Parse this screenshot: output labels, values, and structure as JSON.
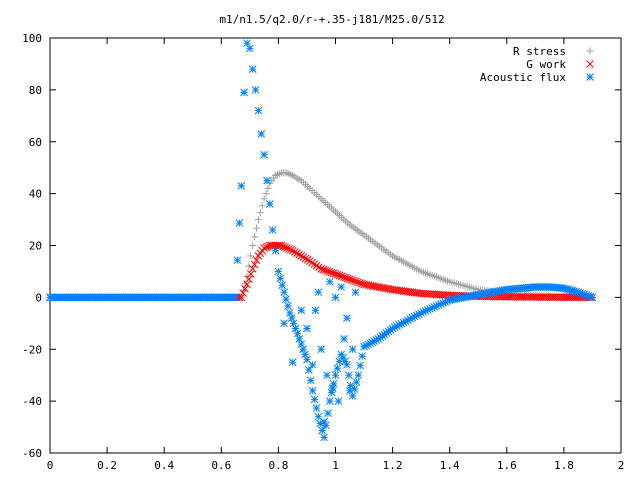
{
  "chart_data": {
    "type": "scatter",
    "title": "m1/n1.5/q2.0/r-+.35-j181/M25.0/512",
    "xlabel": "",
    "ylabel": "",
    "xlim": [
      0,
      2
    ],
    "ylim": [
      -60,
      100
    ],
    "x_ticks": [
      "0",
      "0.2",
      "0.4",
      "0.6",
      "0.8",
      "1",
      "1.2",
      "1.4",
      "1.6",
      "1.8",
      "2"
    ],
    "y_ticks": [
      "100",
      "80",
      "60",
      "40",
      "20",
      "0",
      "-20",
      "-40",
      "-60"
    ],
    "grid": false,
    "legend_position": "top-right",
    "series": [
      {
        "name": "R stress",
        "marker": "plus",
        "color": "#a0a0a0",
        "x": [
          0.0,
          0.1,
          0.2,
          0.3,
          0.4,
          0.5,
          0.6,
          0.67,
          0.69,
          0.71,
          0.73,
          0.75,
          0.77,
          0.79,
          0.81,
          0.83,
          0.85,
          0.88,
          0.91,
          0.95,
          1.0,
          1.05,
          1.1,
          1.2,
          1.3,
          1.4,
          1.5,
          1.6,
          1.7,
          1.8,
          1.9
        ],
        "y": [
          0,
          0,
          0,
          0,
          0,
          0,
          0,
          0,
          8,
          20,
          30,
          38,
          44,
          47,
          48,
          48,
          47,
          45,
          42,
          38,
          33,
          28,
          24,
          16,
          10,
          6,
          3,
          1.5,
          0.8,
          0.3,
          0
        ]
      },
      {
        "name": "G work",
        "marker": "x",
        "color": "#ff0000",
        "x": [
          0.0,
          0.1,
          0.2,
          0.3,
          0.4,
          0.5,
          0.6,
          0.67,
          0.69,
          0.71,
          0.73,
          0.75,
          0.77,
          0.79,
          0.81,
          0.83,
          0.85,
          0.88,
          0.91,
          0.95,
          1.0,
          1.05,
          1.1,
          1.2,
          1.3,
          1.4,
          1.5,
          1.6,
          1.7,
          1.8,
          1.9
        ],
        "y": [
          0,
          0,
          0,
          0,
          0,
          0,
          0,
          0,
          5,
          11,
          16,
          19,
          20,
          20,
          20,
          19,
          18,
          16,
          14,
          11,
          9,
          7,
          5,
          3,
          1.5,
          0.8,
          0.4,
          0.2,
          0.1,
          0,
          0
        ]
      },
      {
        "name": "Acoustic flux",
        "marker": "star",
        "color": "#0080ff",
        "x": [
          0.0,
          0.1,
          0.2,
          0.3,
          0.4,
          0.5,
          0.6,
          0.65,
          0.67,
          0.68,
          0.69,
          0.7,
          0.71,
          0.72,
          0.73,
          0.74,
          0.75,
          0.76,
          0.77,
          0.78,
          0.79,
          0.8,
          0.82,
          0.84,
          0.86,
          0.88,
          0.9,
          0.92,
          0.94,
          0.96,
          0.98,
          1.0,
          1.02,
          1.04,
          1.06,
          1.08,
          1.1,
          1.15,
          1.2,
          1.3,
          1.4,
          1.5,
          1.6,
          1.7,
          1.75,
          1.8,
          1.85,
          1.9
        ],
        "y": [
          0,
          0,
          0,
          0,
          0,
          0,
          0,
          0,
          43,
          79,
          98,
          96,
          88,
          80,
          72,
          63,
          55,
          45,
          36,
          26,
          18,
          10,
          2,
          -6,
          -12,
          -18,
          -24,
          -36,
          -46,
          -54,
          -40,
          -30,
          -22,
          -26,
          -38,
          -30,
          -19,
          -16,
          -12,
          -6,
          -1,
          1,
          3,
          4,
          4,
          3.5,
          2,
          0
        ],
        "scatter_x": [
          0.82,
          0.85,
          0.88,
          0.9,
          0.92,
          0.93,
          0.94,
          0.95,
          0.96,
          0.97,
          0.98,
          0.99,
          1.0,
          1.01,
          1.02,
          1.03,
          1.04,
          1.05,
          1.06,
          1.07
        ],
        "scatter_y": [
          -10,
          -25,
          -5,
          -12,
          -26,
          -5,
          2,
          -20,
          -48,
          -30,
          6,
          -35,
          0,
          -40,
          4,
          -16,
          -8,
          -36,
          -20,
          2
        ]
      }
    ]
  }
}
